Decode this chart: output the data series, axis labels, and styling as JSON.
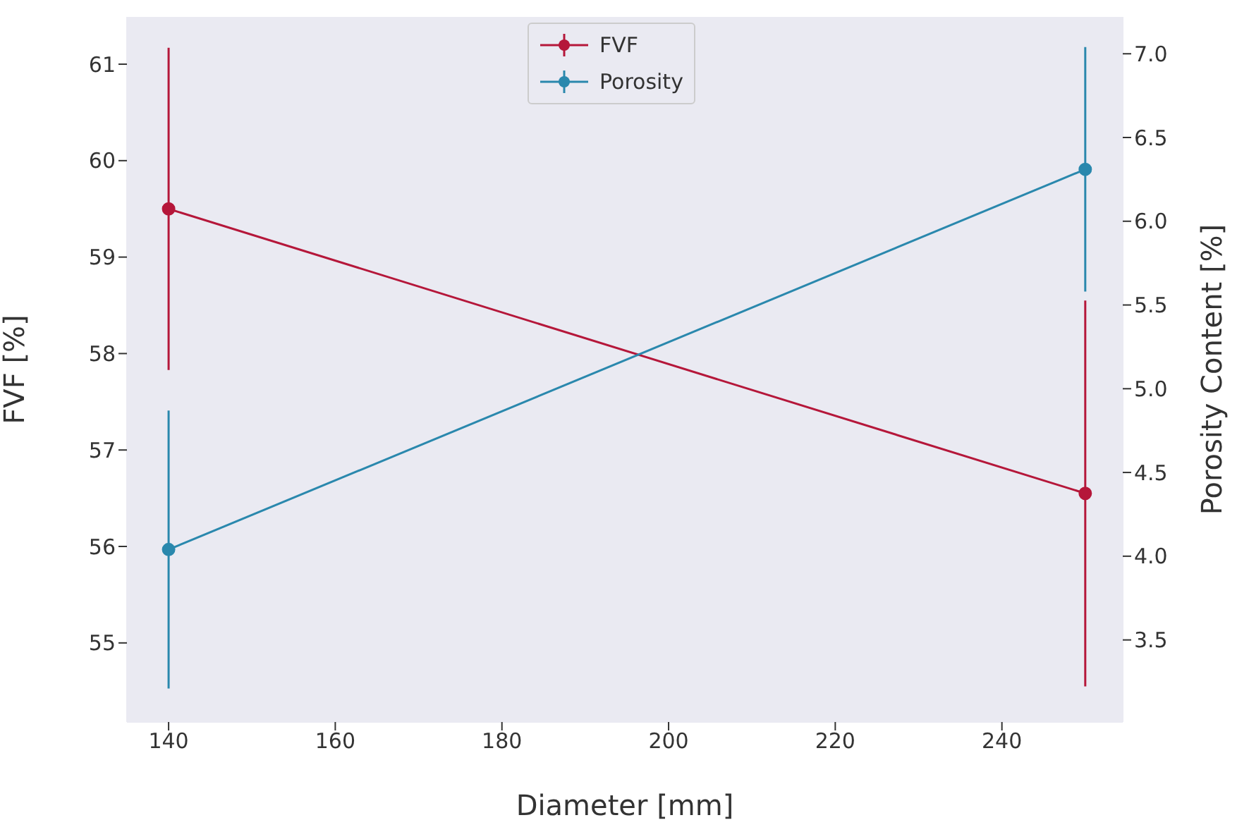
{
  "chart_data": {
    "type": "line",
    "xlabel": "Diameter [mm]",
    "ylabel": "FVF [%]",
    "y2label": "Porosity Content [%]",
    "x": [
      140,
      250
    ],
    "series": [
      {
        "name": "FVF",
        "color": "#b5173a",
        "values": [
          59.5,
          56.55
        ],
        "errors": [
          1.67,
          2.0
        ]
      },
      {
        "name": "Porosity",
        "color": "#2a88ad",
        "values": [
          4.04,
          6.31
        ],
        "errors": [
          0.83,
          0.73
        ],
        "axis": "y2"
      }
    ],
    "xlim": [
      135,
      254.5
    ],
    "xticks": [
      140,
      160,
      180,
      200,
      220,
      240
    ],
    "ylim": [
      54.18,
      61.49
    ],
    "yticks": [
      55,
      56,
      57,
      58,
      59,
      60,
      61
    ],
    "y2lim": [
      3.01,
      7.22
    ],
    "y2ticks": [
      3.5,
      {
        "value": 4,
        "label": "4.0"
      },
      4.5,
      {
        "value": 5,
        "label": "5.0"
      },
      5.5,
      {
        "value": 6,
        "label": "6.0"
      },
      6.5,
      {
        "value": 7,
        "label": "7.0"
      }
    ],
    "grid": false,
    "legend": "top",
    "marker": "circle",
    "line_style": "solid"
  }
}
